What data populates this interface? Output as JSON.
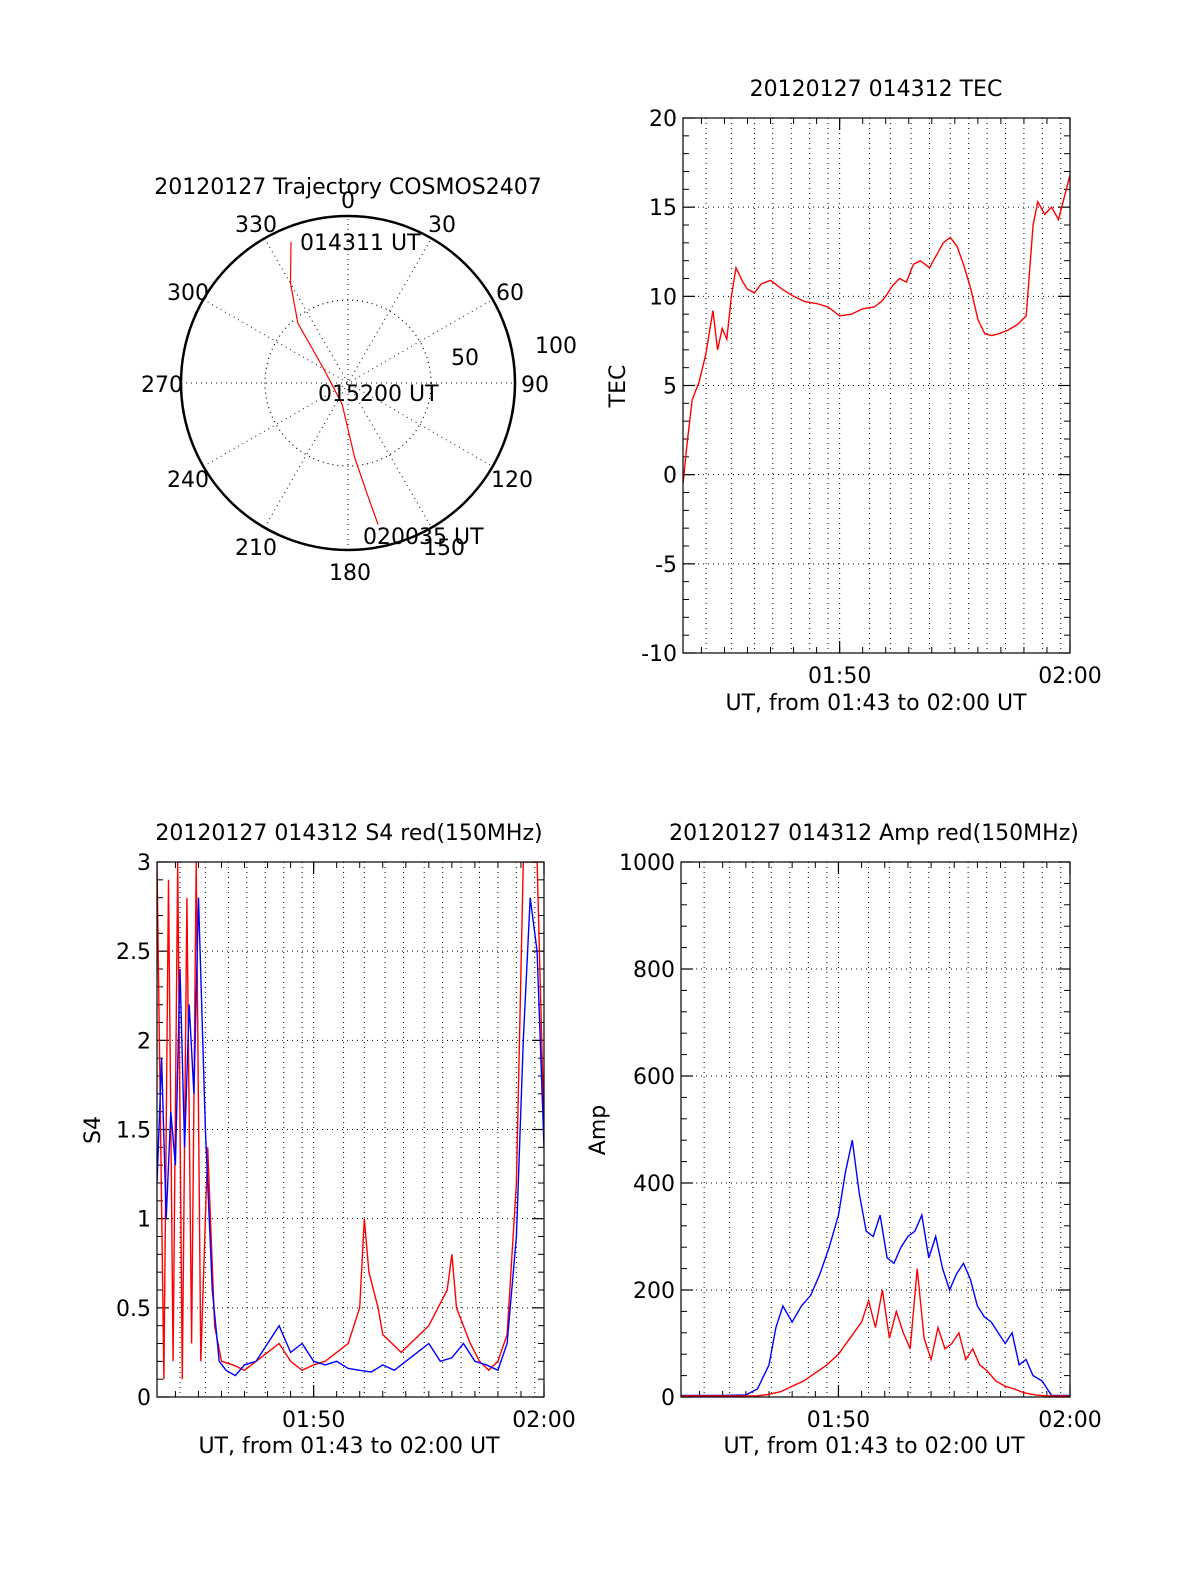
{
  "colors": {
    "red": "#ff0000",
    "blue": "#0000ff"
  },
  "chart_data": [
    {
      "type": "polar",
      "title": "20120127 Trajectory COSMOS2407",
      "azimuth_labels": [
        "0",
        "30",
        "60",
        "90",
        "120",
        "150",
        "180",
        "210",
        "240",
        "270",
        "300",
        "330"
      ],
      "radius_labels": [
        "50",
        "100"
      ],
      "annotations": [
        "014311 UT",
        "015200 UT",
        "020035 UT"
      ],
      "track": {
        "color": "red",
        "points": [
          {
            "az": 338,
            "zen": 82
          },
          {
            "az": 330,
            "zen": 62
          },
          {
            "az": 320,
            "zen": 42
          },
          {
            "az": 300,
            "zen": 15
          },
          {
            "az": 195,
            "zen": 12
          },
          {
            "az": 175,
            "zen": 40
          },
          {
            "az": 170,
            "zen": 62
          },
          {
            "az": 168,
            "zen": 78
          }
        ]
      }
    },
    {
      "type": "line",
      "title": "20120127 014312 TEC",
      "xlabel": "UT, from 01:43 to 02:00 UT",
      "ylabel": "TEC",
      "xlim": [
        43.2,
        60.0
      ],
      "ylim": [
        -10,
        20
      ],
      "yticks": [
        "-10",
        "-5",
        "0",
        "5",
        "10",
        "15",
        "20"
      ],
      "xticks": [
        {
          "v": 50,
          "label": "01:50"
        },
        {
          "v": 60,
          "label": "02:00"
        }
      ],
      "series": [
        {
          "color": "red",
          "x": [
            43.2,
            43.4,
            43.6,
            43.9,
            44.2,
            44.5,
            44.7,
            44.9,
            45.1,
            45.3,
            45.5,
            45.8,
            46.0,
            46.3,
            46.6,
            47.0,
            47.5,
            48.0,
            48.5,
            49.0,
            49.5,
            50.0,
            50.5,
            51.0,
            51.5,
            51.8,
            52.0,
            52.3,
            52.6,
            52.9,
            53.2,
            53.5,
            53.9,
            54.2,
            54.5,
            54.8,
            55.1,
            55.4,
            55.7,
            56.0,
            56.3,
            56.6,
            56.9,
            57.3,
            57.7,
            58.1,
            58.4,
            58.6,
            58.9,
            59.2,
            59.5,
            59.8,
            60.0
          ],
          "y": [
            -0.5,
            2.0,
            4.2,
            5.2,
            6.8,
            9.2,
            7.0,
            8.2,
            7.6,
            10.0,
            11.6,
            10.8,
            10.4,
            10.2,
            10.7,
            10.9,
            10.4,
            10.0,
            9.7,
            9.6,
            9.4,
            8.9,
            9.0,
            9.3,
            9.4,
            9.7,
            10.0,
            10.6,
            11.0,
            10.8,
            11.8,
            12.0,
            11.6,
            12.3,
            13.0,
            13.3,
            12.8,
            11.7,
            10.4,
            8.7,
            7.9,
            7.8,
            7.9,
            8.1,
            8.4,
            8.9,
            14.0,
            15.3,
            14.6,
            15.0,
            14.3,
            15.8,
            16.8
          ]
        }
      ]
    },
    {
      "type": "line",
      "title": "20120127 014312 S4 red(150MHz)",
      "xlabel": "UT, from 01:43 to 02:00 UT",
      "ylabel": "S4",
      "xlim": [
        43.2,
        60.0
      ],
      "ylim": [
        0,
        3
      ],
      "yticks": [
        "0",
        "0.5",
        "1",
        "1.5",
        "2",
        "2.5",
        "3"
      ],
      "xticks": [
        {
          "v": 50,
          "label": "01:50"
        },
        {
          "v": 60,
          "label": "02:00"
        }
      ],
      "series": [
        {
          "color": "red",
          "x": [
            43.2,
            43.5,
            43.7,
            43.9,
            44.1,
            44.3,
            44.5,
            44.7,
            44.9,
            45.1,
            45.4,
            45.7,
            46.0,
            46.5,
            47.0,
            47.5,
            48.0,
            48.5,
            49.0,
            49.5,
            50.0,
            50.5,
            51.0,
            51.5,
            52.0,
            52.2,
            52.4,
            52.6,
            52.8,
            53.0,
            53.4,
            53.8,
            54.2,
            54.6,
            55.0,
            55.4,
            55.8,
            56.0,
            56.2,
            56.5,
            56.8,
            57.2,
            57.6,
            58.0,
            58.4,
            58.8,
            59.1,
            59.4,
            59.7,
            60.0
          ],
          "y": [
            3.0,
            0.1,
            2.9,
            0.2,
            3.0,
            0.1,
            2.8,
            0.3,
            3.0,
            0.2,
            1.4,
            0.4,
            0.2,
            0.18,
            0.15,
            0.2,
            0.25,
            0.3,
            0.2,
            0.15,
            0.18,
            0.2,
            0.25,
            0.3,
            0.5,
            1.0,
            0.7,
            0.6,
            0.5,
            0.35,
            0.3,
            0.25,
            0.3,
            0.35,
            0.4,
            0.5,
            0.6,
            0.8,
            0.5,
            0.4,
            0.3,
            0.2,
            0.15,
            0.2,
            0.35,
            1.2,
            3.0,
            3.0,
            3.0,
            1.5
          ]
        },
        {
          "color": "blue",
          "x": [
            43.2,
            43.4,
            43.6,
            43.8,
            44.0,
            44.2,
            44.4,
            44.6,
            44.8,
            45.0,
            45.3,
            45.6,
            45.9,
            46.2,
            46.6,
            47.0,
            47.5,
            48.0,
            48.5,
            49.0,
            49.5,
            50.0,
            50.5,
            51.0,
            51.5,
            52.0,
            52.5,
            53.0,
            53.5,
            54.0,
            54.5,
            55.0,
            55.5,
            56.0,
            56.5,
            57.0,
            57.5,
            58.0,
            58.4,
            58.8,
            59.1,
            59.4,
            59.7,
            60.0
          ],
          "y": [
            1.2,
            1.9,
            1.0,
            1.6,
            1.3,
            2.4,
            1.4,
            2.2,
            1.7,
            2.8,
            1.5,
            0.6,
            0.2,
            0.15,
            0.12,
            0.18,
            0.2,
            0.3,
            0.4,
            0.25,
            0.3,
            0.2,
            0.18,
            0.2,
            0.16,
            0.15,
            0.14,
            0.18,
            0.15,
            0.2,
            0.25,
            0.3,
            0.2,
            0.22,
            0.3,
            0.2,
            0.18,
            0.15,
            0.3,
            0.9,
            2.0,
            2.8,
            2.5,
            1.4
          ]
        }
      ]
    },
    {
      "type": "line",
      "title": "20120127 014312 Amp red(150MHz)",
      "xlabel": "UT, from 01:43 to 02:00 UT",
      "ylabel": "Amp",
      "xlim": [
        43.2,
        60.0
      ],
      "ylim": [
        0,
        1000
      ],
      "yticks": [
        "0",
        "200",
        "400",
        "600",
        "800",
        "1000"
      ],
      "xticks": [
        {
          "v": 50,
          "label": "01:50"
        },
        {
          "v": 60,
          "label": "02:00"
        }
      ],
      "series": [
        {
          "color": "blue",
          "x": [
            43.2,
            44.0,
            45.0,
            46.0,
            46.5,
            47.0,
            47.3,
            47.6,
            48.0,
            48.4,
            48.8,
            49.2,
            49.6,
            50.0,
            50.3,
            50.6,
            50.9,
            51.2,
            51.5,
            51.8,
            52.1,
            52.4,
            52.7,
            53.0,
            53.3,
            53.6,
            53.9,
            54.2,
            54.5,
            54.8,
            55.1,
            55.4,
            55.7,
            56.0,
            56.3,
            56.6,
            56.9,
            57.2,
            57.5,
            57.8,
            58.1,
            58.4,
            58.8,
            59.2,
            60.0
          ],
          "y": [
            3,
            3,
            3,
            4,
            15,
            60,
            130,
            170,
            140,
            170,
            190,
            230,
            280,
            340,
            420,
            480,
            380,
            310,
            300,
            340,
            260,
            250,
            280,
            300,
            310,
            340,
            260,
            300,
            240,
            200,
            230,
            250,
            220,
            170,
            150,
            140,
            120,
            100,
            120,
            60,
            70,
            40,
            30,
            3,
            3
          ]
        },
        {
          "color": "red",
          "x": [
            43.2,
            45.0,
            46.5,
            47.0,
            47.5,
            48.0,
            48.5,
            49.0,
            49.5,
            50.0,
            50.5,
            51.0,
            51.3,
            51.6,
            51.9,
            52.2,
            52.5,
            52.8,
            53.1,
            53.4,
            53.7,
            54.0,
            54.3,
            54.6,
            54.9,
            55.2,
            55.5,
            55.8,
            56.1,
            56.4,
            56.8,
            57.2,
            57.6,
            58.0,
            58.5,
            59.0,
            60.0
          ],
          "y": [
            2,
            2,
            2,
            5,
            10,
            20,
            30,
            45,
            60,
            80,
            110,
            140,
            180,
            130,
            200,
            110,
            160,
            120,
            90,
            240,
            110,
            70,
            130,
            90,
            100,
            120,
            70,
            90,
            60,
            50,
            30,
            20,
            15,
            8,
            4,
            2,
            2
          ]
        }
      ]
    }
  ]
}
